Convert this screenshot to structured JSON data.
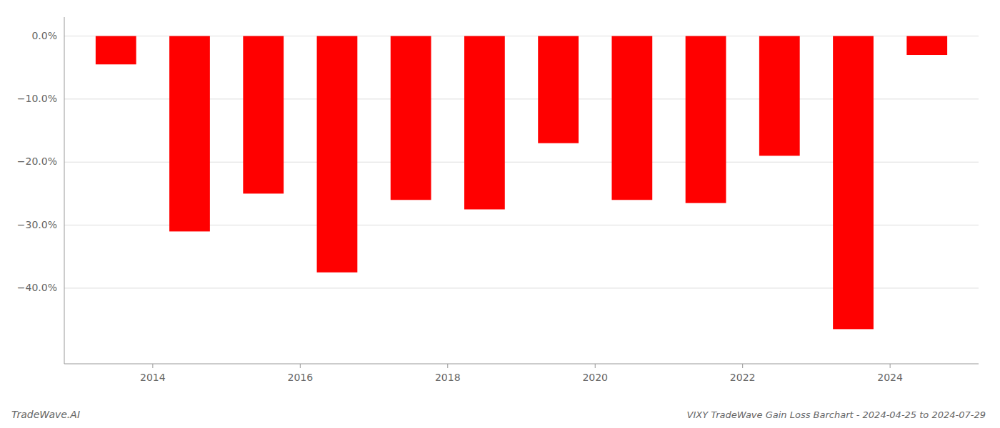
{
  "chart_data": {
    "type": "bar",
    "title": "VIXY TradeWave Gain Loss Barchart - 2024-04-25 to 2024-07-29",
    "annotations": [
      "TradeWave.AI"
    ],
    "x": [
      2013,
      2014,
      2015,
      2016,
      2017,
      2018,
      2019,
      2020,
      2021,
      2022,
      2023,
      2024
    ],
    "values": [
      -4.5,
      -31.0,
      -25.0,
      -37.5,
      -26.0,
      -27.5,
      -17.0,
      -26.0,
      -26.5,
      -19.0,
      -46.5,
      -3.0
    ],
    "color": "#ff0000",
    "xlim": [
      2012.8,
      2025.2
    ],
    "xticks": [
      2014,
      2016,
      2018,
      2020,
      2022,
      2024
    ],
    "ylim": [
      -52,
      3
    ],
    "yticks": [
      {
        "value": 0.0,
        "label": "0.0%"
      },
      {
        "value": -10.0,
        "label": "−10.0%"
      },
      {
        "value": -20.0,
        "label": "−20.0%"
      },
      {
        "value": -30.0,
        "label": "−30.0%"
      },
      {
        "value": -40.0,
        "label": "−40.0%"
      }
    ],
    "grid": true
  }
}
